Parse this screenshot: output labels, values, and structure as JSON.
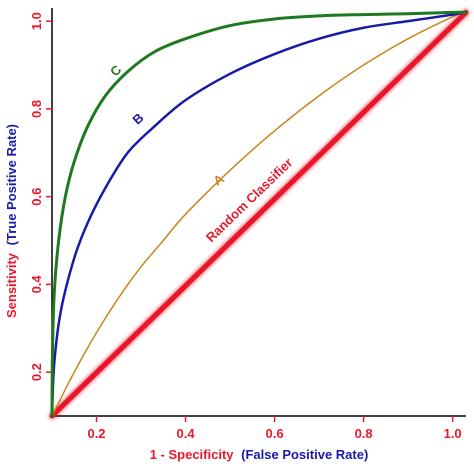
{
  "chart_data": {
    "type": "line",
    "title": "",
    "xlabel": {
      "prefix": "1 - Specificity",
      "suffix": "(False Positive Rate)",
      "prefix_color": "#e8192c",
      "suffix_color": "#1a1aa8"
    },
    "ylabel": {
      "prefix": "Sensitivity",
      "suffix": "(True Positive Rate)",
      "prefix_color": "#e8192c",
      "suffix_color": "#1a1aa8"
    },
    "xlim": [
      0.1,
      1.03
    ],
    "ylim": [
      0.1,
      1.03
    ],
    "x_ticks": [
      0.2,
      0.4,
      0.6,
      0.8,
      1.0
    ],
    "y_ticks": [
      0.2,
      0.4,
      0.6,
      0.8,
      1.0
    ],
    "x_tick_labels": [
      "0.2",
      "0.4",
      "0.6",
      "0.8",
      "1.0"
    ],
    "y_tick_labels": [
      "0.2",
      "0.4",
      "0.6",
      "0.8",
      "1.0"
    ],
    "grid": false,
    "colors": {
      "axis": "#000000",
      "tick": "#e8192c"
    },
    "series": [
      {
        "label": "C",
        "color": "#1f7a1f",
        "width": 3,
        "x": [
          0.1,
          0.101,
          0.105,
          0.115,
          0.13,
          0.15,
          0.18,
          0.22,
          0.27,
          0.33,
          0.4,
          0.5,
          0.6,
          0.7,
          0.8,
          0.9,
          1.0,
          1.03
        ],
        "y": [
          0.1,
          0.24,
          0.38,
          0.5,
          0.6,
          0.68,
          0.76,
          0.83,
          0.885,
          0.93,
          0.96,
          0.99,
          1.005,
          1.012,
          1.015,
          1.017,
          1.02,
          1.02
        ]
      },
      {
        "label": "B",
        "color": "#1a1aa8",
        "width": 2.5,
        "x": [
          0.1,
          0.105,
          0.12,
          0.15,
          0.18,
          0.22,
          0.27,
          0.33,
          0.4,
          0.5,
          0.6,
          0.7,
          0.8,
          0.9,
          1.0,
          1.03
        ],
        "y": [
          0.1,
          0.22,
          0.34,
          0.46,
          0.54,
          0.62,
          0.7,
          0.76,
          0.82,
          0.88,
          0.925,
          0.96,
          0.985,
          1.0,
          1.015,
          1.02
        ]
      },
      {
        "label": "A",
        "color": "#c8861e",
        "width": 1.5,
        "x": [
          0.1,
          0.15,
          0.2,
          0.25,
          0.3,
          0.35,
          0.4,
          0.5,
          0.6,
          0.7,
          0.8,
          0.9,
          1.0,
          1.03
        ],
        "y": [
          0.1,
          0.2,
          0.29,
          0.37,
          0.44,
          0.5,
          0.56,
          0.66,
          0.75,
          0.83,
          0.9,
          0.96,
          1.01,
          1.02
        ]
      },
      {
        "label": "Random Classifier",
        "color": "#e8192c",
        "width": 5,
        "x": [
          0.1,
          1.03
        ],
        "y": [
          0.1,
          1.02
        ]
      }
    ],
    "annotations": [
      {
        "text": "C",
        "series": "C",
        "color": "#1f7a1f",
        "x": 0.25,
        "y": 0.88,
        "rotate": -45
      },
      {
        "text": "B",
        "series": "B",
        "color": "#1a1aa8",
        "x": 0.3,
        "y": 0.77,
        "rotate": -42
      },
      {
        "text": "A",
        "series": "A",
        "color": "#c8861e",
        "x": 0.48,
        "y": 0.63,
        "rotate": -36
      },
      {
        "text": "Random Classifier",
        "series": "Random Classifier",
        "color": "#e8192c",
        "x": 0.55,
        "y": 0.585,
        "rotate": -44
      }
    ]
  }
}
